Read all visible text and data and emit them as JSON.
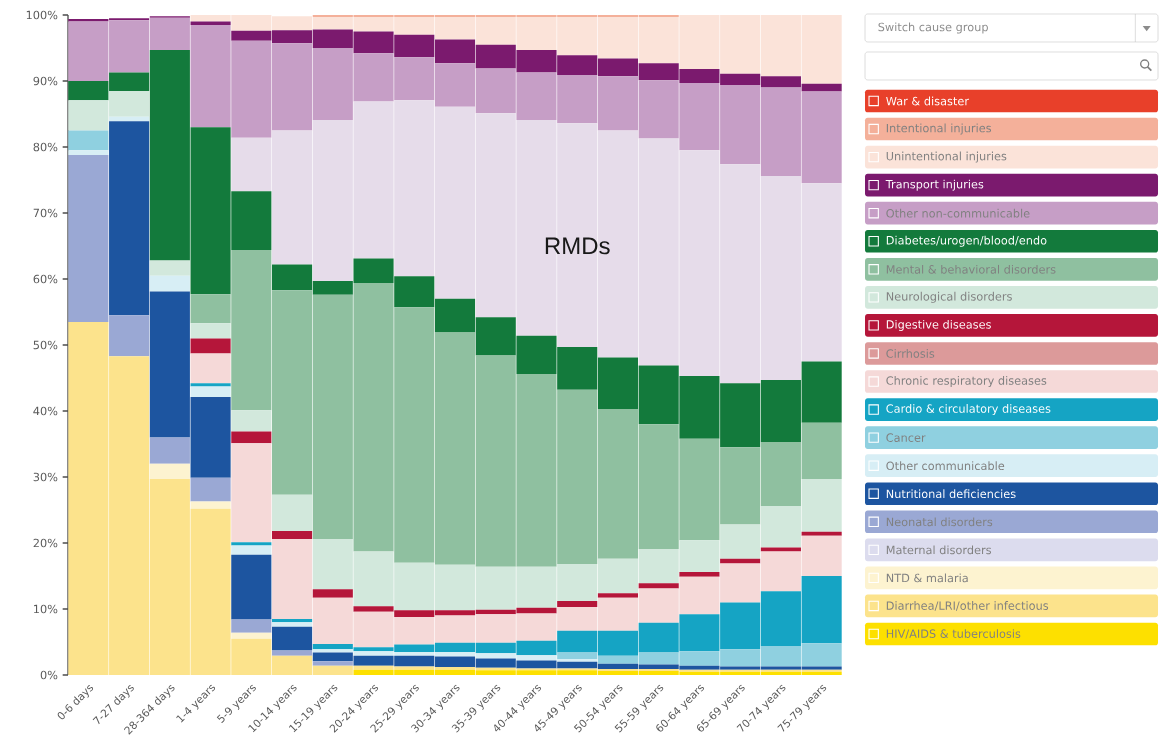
{
  "chart_data": {
    "type": "bar",
    "stacked": true,
    "legend": "right",
    "categories": [
      "0-6 days",
      "7-27 days",
      "28-364 days",
      "1-4 years",
      "5-9 years",
      "10-14 years",
      "15-19 years",
      "20-24 years",
      "25-29 years",
      "30-34 years",
      "35-39 years",
      "40-44 years",
      "45-49 years",
      "50-54 years",
      "55-59 years",
      "60-64 years",
      "65-69 years",
      "70-74 years",
      "75-79 years"
    ],
    "ylim": [
      0,
      100
    ],
    "yticks": [
      {
        "value": 0,
        "label": "0%"
      },
      {
        "value": 10,
        "label": "10%"
      },
      {
        "value": 20,
        "label": "20%"
      },
      {
        "value": 30,
        "label": "30%"
      },
      {
        "value": 40,
        "label": "40%"
      },
      {
        "value": 50,
        "label": "50%"
      },
      {
        "value": 60,
        "label": "60%"
      },
      {
        "value": 70,
        "label": "70%"
      },
      {
        "value": 80,
        "label": "80%"
      },
      {
        "value": 90,
        "label": "90%"
      },
      {
        "value": 100,
        "label": "100%"
      }
    ],
    "annotations": [
      {
        "text": "RMDs",
        "x": "45-49 years",
        "y": 65
      },
      "Switch cause group"
    ],
    "series": [
      {
        "name": "HIV/AIDS & tuberculosis",
        "color": "#fde000",
        "values": [
          0,
          0,
          0,
          0,
          0,
          0,
          0,
          0.8,
          0.8,
          0.8,
          0.7,
          0.7,
          0.7,
          0.6,
          0.6,
          0.5,
          0.5,
          0.5,
          0.5
        ]
      },
      {
        "name": "Diarrhea/LRI/other infectious",
        "color": "#fce38c",
        "values": [
          53.5,
          48.3,
          29.7,
          25.2,
          5.5,
          2.9,
          1.4,
          0.6,
          0.5,
          0.4,
          0.4,
          0.3,
          0.3,
          0.3,
          0.3,
          0.3,
          0.3,
          0.3,
          0.3
        ]
      },
      {
        "name": "NTD & malaria",
        "color": "#fdf3d0",
        "values": [
          0,
          0,
          2.3,
          1.1,
          0.9,
          null,
          0,
          0,
          0,
          0,
          0,
          0,
          0,
          0,
          0,
          0,
          0,
          0,
          0
        ]
      },
      {
        "name": "Maternal disorders",
        "color": "#dcdcee",
        "values": [
          0,
          0,
          0,
          0,
          0,
          0,
          0,
          0,
          0,
          0,
          0,
          0,
          0,
          0,
          0,
          0,
          0,
          0,
          0
        ]
      },
      {
        "name": "Neonatal disorders",
        "color": "#9aa8d4",
        "values": [
          25.3,
          6.2,
          4.0,
          3.6,
          2.0,
          0.8,
          0.7,
          0,
          0,
          0,
          0,
          0,
          0,
          0,
          0,
          0,
          0,
          0,
          0
        ]
      },
      {
        "name": "Nutritional deficiencies",
        "color": "#1d55a0",
        "values": [
          0,
          29.4,
          22.1,
          12.2,
          9.8,
          3.6,
          1.3,
          1.5,
          1.6,
          1.6,
          1.4,
          1.2,
          1.0,
          0.8,
          0.7,
          0.6,
          0.5,
          0.5,
          0.5
        ]
      },
      {
        "name": "Other communicable",
        "color": "#d7eef5",
        "values": [
          0.7,
          0.7,
          2.4,
          1.6,
          1.4,
          0.7,
          0.5,
          0.7,
          0.6,
          0.7,
          0.8,
          0.8,
          0.4,
          0,
          0,
          0,
          0,
          0,
          0
        ]
      },
      {
        "name": "Cancer",
        "color": "#8fd0e0",
        "values": [
          3.0,
          0,
          0,
          0,
          0,
          0,
          0,
          0,
          0,
          0,
          0,
          0,
          1.0,
          1.2,
          1.8,
          2.2,
          2.6,
          3.1,
          3.5
        ]
      },
      {
        "name": "Cardio & circulatory diseases",
        "color": "#15a4c4",
        "values": [
          0,
          0,
          0,
          0.5,
          0.5,
          0.5,
          0.8,
          0.6,
          1.1,
          1.4,
          1.6,
          2.2,
          3.3,
          3.8,
          4.5,
          5.6,
          7.1,
          8.3,
          10.2
        ]
      },
      {
        "name": "Chronic respiratory diseases",
        "color": "#f5d9d8",
        "values": [
          0,
          0,
          0,
          4.5,
          15.0,
          12.1,
          7.0,
          5.4,
          4.2,
          4.1,
          4.3,
          4.1,
          3.6,
          5.0,
          5.2,
          5.7,
          5.9,
          6.0,
          6.1
        ]
      },
      {
        "name": "Cirrhosis",
        "color": "#dc9a9a",
        "values": [
          0,
          0,
          0,
          0,
          0,
          0,
          0,
          0,
          0,
          0,
          0,
          0,
          0,
          0,
          0,
          0,
          0,
          0,
          0
        ]
      },
      {
        "name": "Digestive diseases",
        "color": "#b5163a",
        "values": [
          0,
          0,
          0,
          2.3,
          1.8,
          1.2,
          1.3,
          0.8,
          1.0,
          0.8,
          0.7,
          0.9,
          0.9,
          0.7,
          0.8,
          0.7,
          0.7,
          0.6,
          0.6
        ]
      },
      {
        "name": "Neurological disorders",
        "color": "#d2e8dc",
        "values": [
          4.6,
          3.9,
          2.3,
          2.3,
          3.2,
          5.5,
          7.6,
          8.3,
          7.2,
          6.9,
          6.5,
          6.2,
          5.6,
          5.2,
          5.2,
          4.8,
          5.2,
          6.3,
          8.0
        ]
      },
      {
        "name": "Mental & behavioral disorders",
        "color": "#8fc0a0",
        "values": [
          0,
          0,
          0,
          4.4,
          24.3,
          31.0,
          37.0,
          40.7,
          38.7,
          35.2,
          32.0,
          29.2,
          26.4,
          22.7,
          18.9,
          15.4,
          11.7,
          9.7,
          8.5
        ]
      },
      {
        "name": "Diabetes/urogen/blood/endo",
        "color": "#137a3c",
        "values": [
          2.9,
          2.8,
          31.9,
          25.3,
          8.9,
          3.9,
          2.1,
          3.7,
          4.7,
          5.1,
          5.8,
          5.8,
          6.5,
          7.8,
          8.9,
          9.5,
          9.7,
          9.4,
          9.3
        ]
      },
      {
        "color": "#e6dcea",
        "values": [
          0,
          0,
          0,
          0,
          8.1,
          20.3,
          24.4,
          23.8,
          26.7,
          29.1,
          30.9,
          32.7,
          33.9,
          34.4,
          34.4,
          34.2,
          33.2,
          30.9,
          27.0
        ]
      },
      {
        "name": "Other non-communicable",
        "color": "#c69ec6",
        "values": [
          9.0,
          7.9,
          4.9,
          15.5,
          14.7,
          13.2,
          10.9,
          7.3,
          6.5,
          6.6,
          6.8,
          7.2,
          7.3,
          8.2,
          8.8,
          10.2,
          12.0,
          13.4,
          13.9
        ]
      },
      {
        "name": "Transport injuries",
        "color": "#7b1a6e",
        "values": [
          0.4,
          0.3,
          0.2,
          0.5,
          1.5,
          2.0,
          2.8,
          3.3,
          3.4,
          3.6,
          3.6,
          3.4,
          3.0,
          2.7,
          2.6,
          2.1,
          1.7,
          1.7,
          1.2
        ]
      },
      {
        "name": "Unintentional injuries",
        "color": "#fbe3d9",
        "values": [
          null,
          null,
          null,
          1.0,
          2.4,
          2.1,
          1.9,
          2.2,
          2.7,
          3.4,
          4.2,
          5.0,
          5.8,
          6.3,
          7.0,
          8.2,
          8.9,
          9.3,
          10.4
        ]
      },
      {
        "name": "Intentional injuries",
        "color": "#f4b09a",
        "values": [
          0,
          0,
          0,
          0,
          0,
          0,
          0.3,
          0.3,
          0.3,
          0.3,
          0.3,
          0.3,
          0.3,
          0.3,
          0.3,
          0,
          0,
          0,
          0
        ]
      },
      {
        "name": "War & disaster",
        "color": "#e8402a",
        "values": [
          0,
          0,
          0,
          0,
          0,
          0,
          0,
          0,
          0,
          0,
          0,
          0,
          0,
          0,
          0,
          0,
          0,
          0,
          0
        ]
      }
    ]
  }
}
